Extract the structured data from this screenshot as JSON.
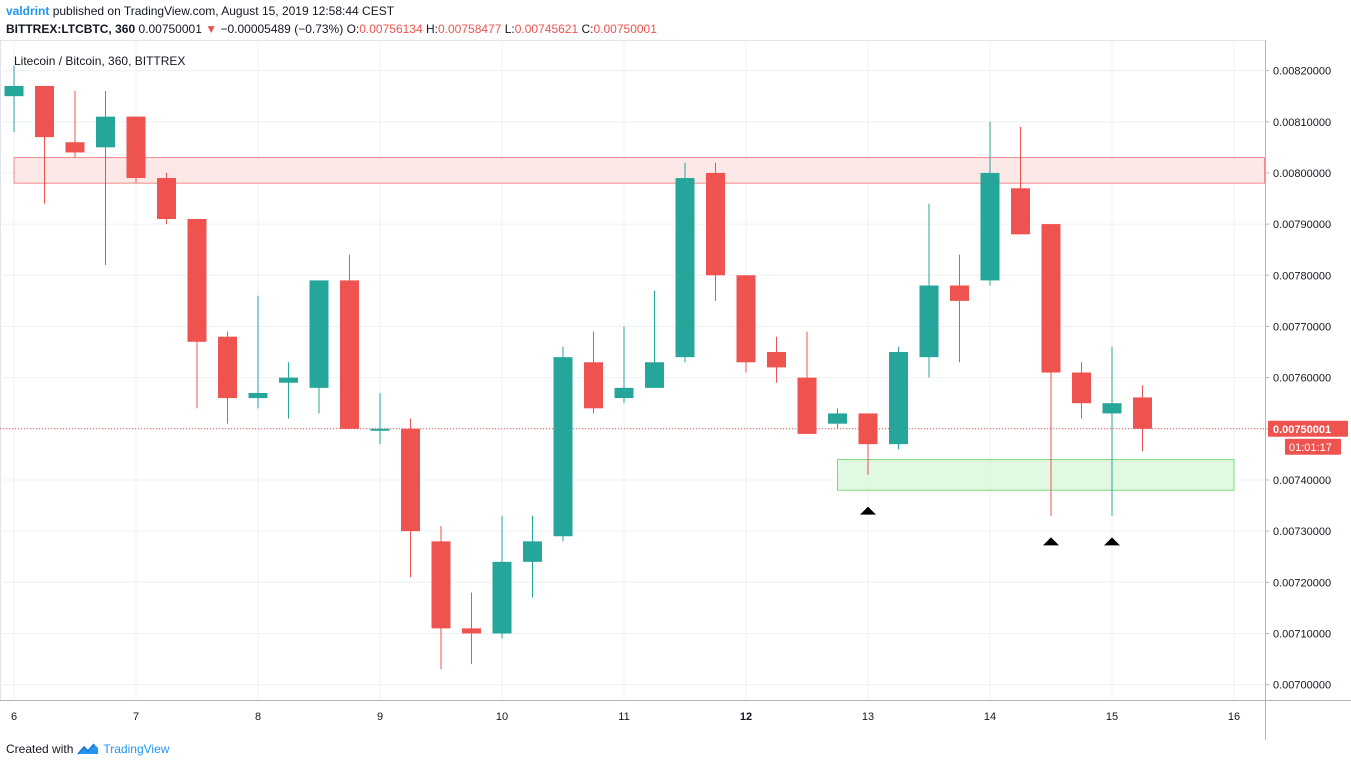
{
  "header": {
    "author": "valdrint",
    "published_text": "published on TradingView.com, August 15, 2019 12:58:44 CEST",
    "symbol": "BITTREX:LTCBTC, 360",
    "last": "0.00750001",
    "change_arrow": "▼",
    "change": "−0.00005489 (−0.73%)",
    "o_label": "O:",
    "o": "0.00756134",
    "h_label": "H:",
    "h": "0.00758477",
    "l_label": "L:",
    "l": "0.00745621",
    "c_label": "C:",
    "c": "0.00750001"
  },
  "footer": {
    "created_with": "Created with",
    "brand": "TradingView",
    "logo_icon": "tradingview-logo-icon"
  },
  "chart_data": {
    "type": "candlestick",
    "title": "Litecoin / Bitcoin, 360, BITTREX",
    "x_tick_labels": [
      "6",
      "7",
      "8",
      "9",
      "10",
      "11",
      "12",
      "13",
      "14",
      "15",
      "16"
    ],
    "bold_x_tick": "12",
    "y_tick_labels": [
      "0.00820000",
      "0.00810000",
      "0.00800000",
      "0.00790000",
      "0.00780000",
      "0.00770000",
      "0.00760000",
      "0.00750000",
      "0.00740000",
      "0.00730000",
      "0.00720000",
      "0.00710000",
      "0.00700000"
    ],
    "ylim": [
      0.00697,
      0.00825
    ],
    "xlim": [
      5.99,
      16.25
    ],
    "grid": true,
    "colors": {
      "up": "#26a69a",
      "down": "#ef5350",
      "price_line": "#ef5350"
    },
    "current_price_label": "0.00750001",
    "countdown_label": "01:01:17",
    "candles": [
      {
        "t": 6.0,
        "o": 0.00815,
        "h": 0.00821,
        "l": 0.00808,
        "c": 0.00817
      },
      {
        "t": 6.25,
        "o": 0.00817,
        "h": 0.00817,
        "l": 0.00794,
        "c": 0.00807
      },
      {
        "t": 6.5,
        "o": 0.00806,
        "h": 0.00816,
        "l": 0.00803,
        "c": 0.00804
      },
      {
        "t": 6.75,
        "o": 0.00805,
        "h": 0.00816,
        "l": 0.00782,
        "c": 0.00811
      },
      {
        "t": 7.0,
        "o": 0.00811,
        "h": 0.00811,
        "l": 0.00798,
        "c": 0.00799
      },
      {
        "t": 7.25,
        "o": 0.00799,
        "h": 0.008,
        "l": 0.0079,
        "c": 0.00791
      },
      {
        "t": 7.5,
        "o": 0.00791,
        "h": 0.00791,
        "l": 0.00754,
        "c": 0.00767
      },
      {
        "t": 7.75,
        "o": 0.00768,
        "h": 0.00769,
        "l": 0.00751,
        "c": 0.00756
      },
      {
        "t": 8.0,
        "o": 0.00756,
        "h": 0.00776,
        "l": 0.00754,
        "c": 0.00757
      },
      {
        "t": 8.25,
        "o": 0.00759,
        "h": 0.00763,
        "l": 0.00752,
        "c": 0.0076
      },
      {
        "t": 8.5,
        "o": 0.00758,
        "h": 0.00779,
        "l": 0.00753,
        "c": 0.00779
      },
      {
        "t": 8.75,
        "o": 0.00779,
        "h": 0.00784,
        "l": 0.0075,
        "c": 0.0075
      },
      {
        "t": 9.0,
        "o": 0.0075,
        "h": 0.00757,
        "l": 0.00747,
        "c": 0.0075
      },
      {
        "t": 9.25,
        "o": 0.0075,
        "h": 0.00752,
        "l": 0.00721,
        "c": 0.0073
      },
      {
        "t": 9.5,
        "o": 0.00728,
        "h": 0.00731,
        "l": 0.00703,
        "c": 0.00711
      },
      {
        "t": 9.75,
        "o": 0.00711,
        "h": 0.00718,
        "l": 0.00704,
        "c": 0.0071
      },
      {
        "t": 10.0,
        "o": 0.0071,
        "h": 0.00733,
        "l": 0.00709,
        "c": 0.00724
      },
      {
        "t": 10.25,
        "o": 0.00724,
        "h": 0.00733,
        "l": 0.00717,
        "c": 0.00728
      },
      {
        "t": 10.5,
        "o": 0.00729,
        "h": 0.00766,
        "l": 0.00728,
        "c": 0.00764
      },
      {
        "t": 10.75,
        "o": 0.00763,
        "h": 0.00769,
        "l": 0.00753,
        "c": 0.00754
      },
      {
        "t": 11.0,
        "o": 0.00756,
        "h": 0.0077,
        "l": 0.00755,
        "c": 0.00758
      },
      {
        "t": 11.25,
        "o": 0.00758,
        "h": 0.00777,
        "l": 0.00758,
        "c": 0.00763
      },
      {
        "t": 11.5,
        "o": 0.00764,
        "h": 0.00802,
        "l": 0.00763,
        "c": 0.00799
      },
      {
        "t": 11.75,
        "o": 0.008,
        "h": 0.00802,
        "l": 0.00775,
        "c": 0.0078
      },
      {
        "t": 12.0,
        "o": 0.0078,
        "h": 0.0078,
        "l": 0.00761,
        "c": 0.00763
      },
      {
        "t": 12.25,
        "o": 0.00765,
        "h": 0.00768,
        "l": 0.00759,
        "c": 0.00762
      },
      {
        "t": 12.5,
        "o": 0.0076,
        "h": 0.00769,
        "l": 0.00749,
        "c": 0.00749
      },
      {
        "t": 12.75,
        "o": 0.00751,
        "h": 0.00754,
        "l": 0.0075,
        "c": 0.00753
      },
      {
        "t": 13.0,
        "o": 0.00753,
        "h": 0.00753,
        "l": 0.00741,
        "c": 0.00747
      },
      {
        "t": 13.25,
        "o": 0.00747,
        "h": 0.00766,
        "l": 0.00746,
        "c": 0.00765
      },
      {
        "t": 13.5,
        "o": 0.00764,
        "h": 0.00794,
        "l": 0.0076,
        "c": 0.00778
      },
      {
        "t": 13.75,
        "o": 0.00778,
        "h": 0.00784,
        "l": 0.00763,
        "c": 0.00775
      },
      {
        "t": 14.0,
        "o": 0.00779,
        "h": 0.0081,
        "l": 0.00778,
        "c": 0.008
      },
      {
        "t": 14.25,
        "o": 0.00797,
        "h": 0.00809,
        "l": 0.00788,
        "c": 0.00788
      },
      {
        "t": 14.5,
        "o": 0.0079,
        "h": 0.0079,
        "l": 0.00733,
        "c": 0.00761
      },
      {
        "t": 14.75,
        "o": 0.00761,
        "h": 0.00763,
        "l": 0.00752,
        "c": 0.00755
      },
      {
        "t": 15.0,
        "o": 0.00753,
        "h": 0.00766,
        "l": 0.00733,
        "c": 0.00755
      },
      {
        "t": 15.25,
        "o": 0.00756134,
        "h": 0.00758477,
        "l": 0.00745621,
        "c": 0.00750001
      }
    ],
    "resistance_zone": {
      "y_from": 0.00798,
      "y_to": 0.00803,
      "x_from": 6.0,
      "x_to": 16.25,
      "fill": "#fde2e2",
      "stroke": "#f28b8b"
    },
    "support_zone": {
      "y_from": 0.00738,
      "y_to": 0.00744,
      "x_from": 12.75,
      "x_to": 16.0,
      "fill": "#d9f7d9",
      "stroke": "#7cdc7c"
    },
    "markers": [
      {
        "t": 13.0,
        "y": 0.00734
      },
      {
        "t": 14.5,
        "y": 0.00728
      },
      {
        "t": 15.0,
        "y": 0.00728
      }
    ]
  }
}
